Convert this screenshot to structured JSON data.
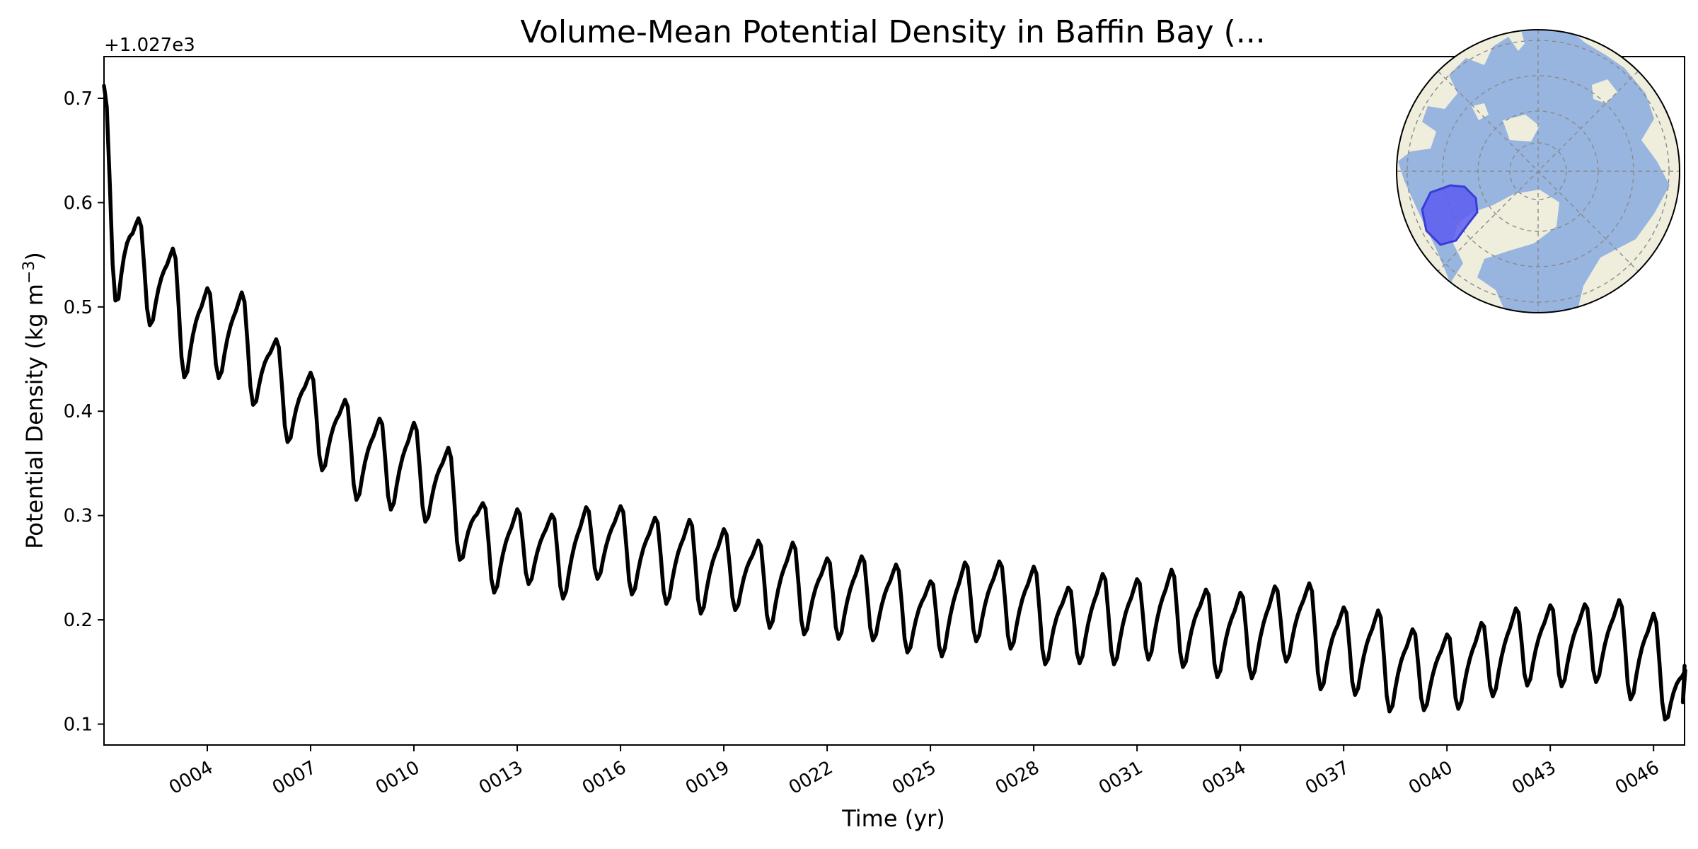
{
  "chart_data": {
    "type": "line",
    "title": "Volume-Mean Potential Density in Baffin Bay (...",
    "xlabel": "Time (yr)",
    "ylabel": "Potential Density (kg m",
    "ylabel_sup": "−3",
    "ylabel_close": ")",
    "y_offset_label": "+1.027e3",
    "xlim": [
      1.0,
      46.9
    ],
    "ylim": [
      0.08,
      0.74
    ],
    "xtick_values": [
      4,
      7,
      10,
      13,
      16,
      19,
      22,
      25,
      28,
      31,
      34,
      37,
      40,
      43,
      46
    ],
    "xtick_labels": [
      "0004",
      "0007",
      "0010",
      "0013",
      "0016",
      "0019",
      "0022",
      "0025",
      "0028",
      "0031",
      "0034",
      "0037",
      "0040",
      "0043",
      "0046"
    ],
    "ytick_values": [
      0.1,
      0.2,
      0.3,
      0.4,
      0.5,
      0.6,
      0.7
    ],
    "ytick_labels": [
      "0.1",
      "0.2",
      "0.3",
      "0.4",
      "0.5",
      "0.6",
      "0.7"
    ],
    "series": [
      {
        "color": "#000000",
        "annual": {
          "year": [
            1,
            2,
            3,
            4,
            5,
            6,
            7,
            8,
            9,
            10,
            11,
            12,
            13,
            14,
            15,
            16,
            17,
            18,
            19,
            20,
            21,
            22,
            23,
            24,
            25,
            26,
            27,
            28,
            29,
            30,
            31,
            32,
            33,
            34,
            35,
            36,
            37,
            38,
            39,
            40,
            41,
            42,
            43,
            44,
            45,
            46
          ],
          "peak": [
            0.712,
            0.585,
            0.556,
            0.518,
            0.514,
            0.469,
            0.437,
            0.411,
            0.393,
            0.389,
            0.365,
            0.312,
            0.306,
            0.301,
            0.308,
            0.309,
            0.298,
            0.296,
            0.287,
            0.276,
            0.274,
            0.259,
            0.261,
            0.253,
            0.237,
            0.255,
            0.256,
            0.251,
            0.231,
            0.244,
            0.239,
            0.248,
            0.229,
            0.226,
            0.232,
            0.235,
            0.212,
            0.209,
            0.191,
            0.186,
            0.197,
            0.211,
            0.214,
            0.215,
            0.219,
            0.206
          ],
          "trough": [
            0.548,
            0.492,
            0.445,
            0.433,
            0.421,
            0.381,
            0.352,
            0.321,
            0.307,
            0.302,
            0.275,
            0.228,
            0.236,
            0.218,
            0.239,
            0.228,
            0.216,
            0.209,
            0.213,
            0.193,
            0.191,
            0.181,
            0.183,
            0.174,
            0.159,
            0.179,
            0.174,
            0.164,
            0.154,
            0.159,
            0.159,
            0.161,
            0.146,
            0.142,
            0.159,
            0.141,
            0.129,
            0.118,
            0.115,
            0.111,
            0.122,
            0.136,
            0.136,
            0.139,
            0.128,
            0.121
          ]
        },
        "end_value": 0.156
      }
    ]
  },
  "inset": {
    "type": "north-polar-map",
    "ocean_color": "#98b5e0",
    "land_color": "#efeedd",
    "region_color": "#5a5cf0",
    "region_highlight": "Baffin Bay"
  }
}
